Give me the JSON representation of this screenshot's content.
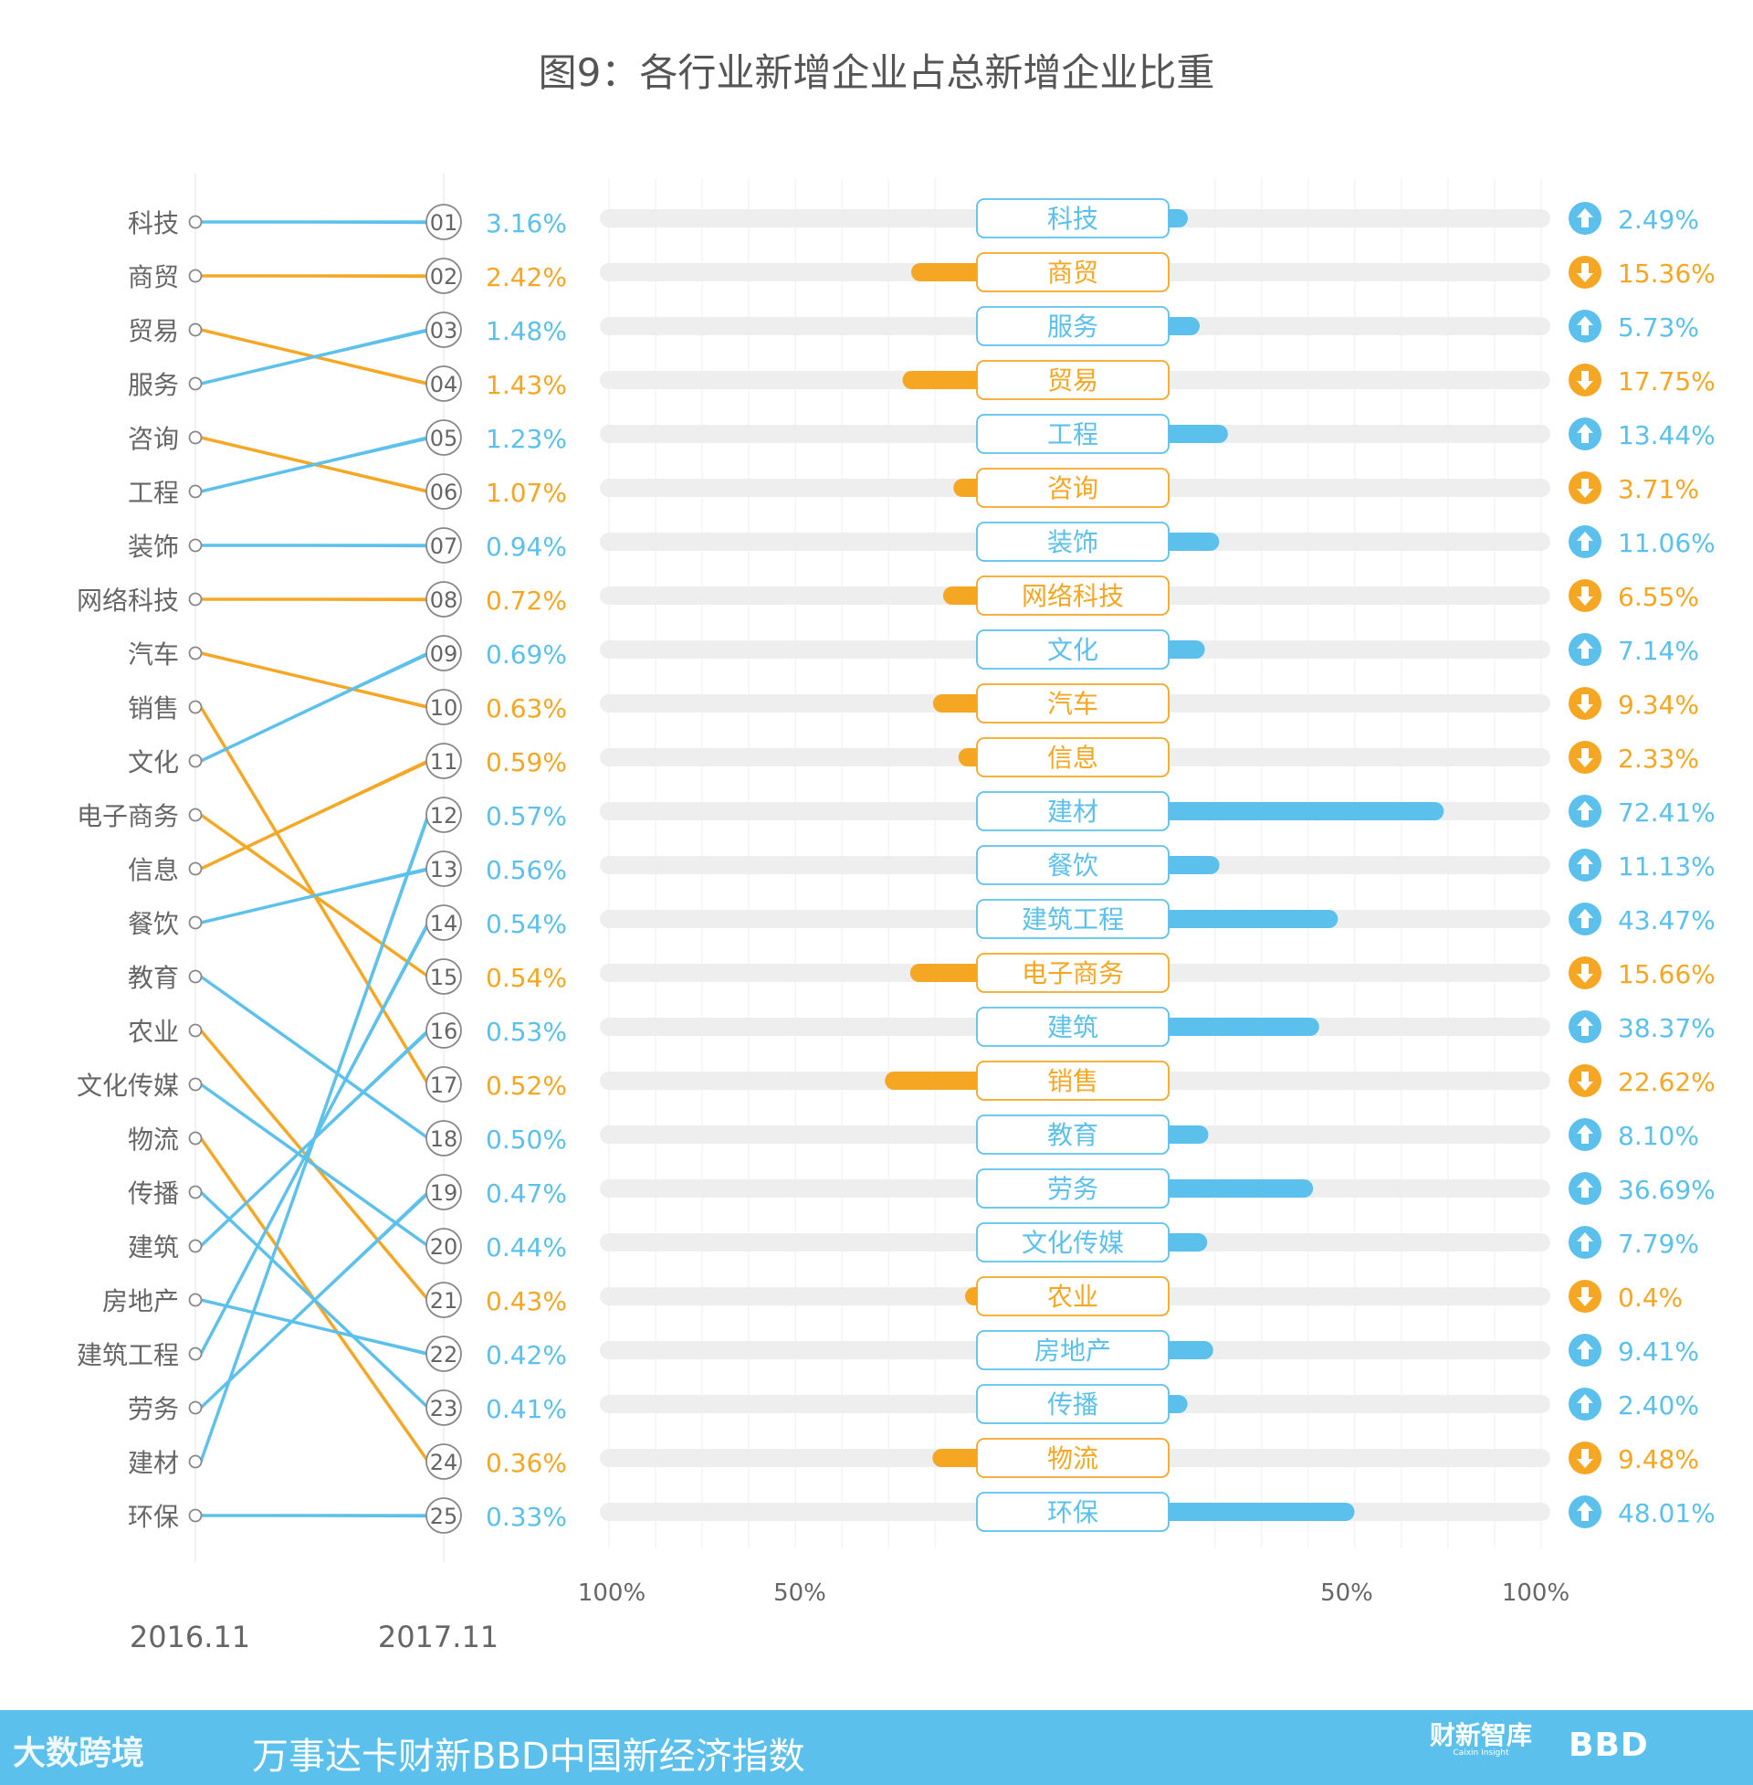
{
  "chart_data": {
    "title": "图9：各行业新增企业占总新增企业比重",
    "type": "slope+diverging-bar",
    "slope": {
      "left_label": "2016.11",
      "right_label": "2017.11",
      "left_order": [
        "科技",
        "商贸",
        "贸易",
        "服务",
        "咨询",
        "工程",
        "装饰",
        "网络科技",
        "汽车",
        "销售",
        "文化",
        "电子商务",
        "信息",
        "餐饮",
        "教育",
        "农业",
        "文化传媒",
        "物流",
        "传播",
        "建筑",
        "房地产",
        "建筑工程",
        "劳务",
        "建材",
        "环保"
      ],
      "right_order": [
        "科技",
        "商贸",
        "服务",
        "贸易",
        "工程",
        "咨询",
        "装饰",
        "网络科技",
        "文化",
        "汽车",
        "信息",
        "建材",
        "餐饮",
        "建筑工程",
        "电子商务",
        "建筑",
        "销售",
        "教育",
        "劳务",
        "文化传媒",
        "农业",
        "房地产",
        "传播",
        "物流",
        "环保"
      ],
      "ranks": [
        "01",
        "02",
        "03",
        "04",
        "05",
        "06",
        "07",
        "08",
        "09",
        "10",
        "11",
        "12",
        "13",
        "14",
        "15",
        "16",
        "17",
        "18",
        "19",
        "20",
        "21",
        "22",
        "23",
        "24",
        "25"
      ],
      "shares_2017": [
        "3.16%",
        "2.42%",
        "1.48%",
        "1.43%",
        "1.23%",
        "1.07%",
        "0.94%",
        "0.72%",
        "0.69%",
        "0.63%",
        "0.59%",
        "0.57%",
        "0.56%",
        "0.54%",
        "0.54%",
        "0.53%",
        "0.52%",
        "0.50%",
        "0.47%",
        "0.44%",
        "0.43%",
        "0.42%",
        "0.41%",
        "0.36%",
        "0.33%"
      ]
    },
    "diverging": {
      "axis_ticks_left": [
        "100%",
        "50%"
      ],
      "axis_ticks_right": [
        "50%",
        "100%"
      ],
      "range": [
        -100,
        100
      ],
      "categories": [
        "科技",
        "商贸",
        "服务",
        "贸易",
        "工程",
        "咨询",
        "装饰",
        "网络科技",
        "文化",
        "汽车",
        "信息",
        "建材",
        "餐饮",
        "建筑工程",
        "电子商务",
        "建筑",
        "销售",
        "教育",
        "劳务",
        "文化传媒",
        "农业",
        "房地产",
        "传播",
        "物流",
        "环保"
      ],
      "change_values": [
        2.49,
        -15.36,
        5.73,
        -17.75,
        13.44,
        -3.71,
        11.06,
        -6.55,
        7.14,
        -9.34,
        -2.33,
        72.41,
        11.13,
        43.47,
        -15.66,
        38.37,
        -22.62,
        8.1,
        36.69,
        7.79,
        -0.4,
        9.41,
        2.4,
        -9.48,
        48.01
      ],
      "change_labels": [
        "2.49%",
        "15.36%",
        "5.73%",
        "17.75%",
        "13.44%",
        "3.71%",
        "11.06%",
        "6.55%",
        "7.14%",
        "9.34%",
        "2.33%",
        "72.41%",
        "11.13%",
        "43.47%",
        "15.66%",
        "38.37%",
        "22.62%",
        "8.10%",
        "36.69%",
        "7.79%",
        "0.4%",
        "9.41%",
        "2.40%",
        "9.48%",
        "48.01%"
      ]
    },
    "colors": {
      "up": "#5bc0eb",
      "down": "#f5a623",
      "track": "#eeeeee",
      "text": "#666666",
      "gray": "#888888"
    }
  },
  "footer": {
    "left_logo": "大数跨境",
    "title": "万事达卡财新BBD中国新经济指数",
    "caixin": "财新智库",
    "caixin_sub": "Caixin Insight",
    "bbd": "BBD"
  }
}
